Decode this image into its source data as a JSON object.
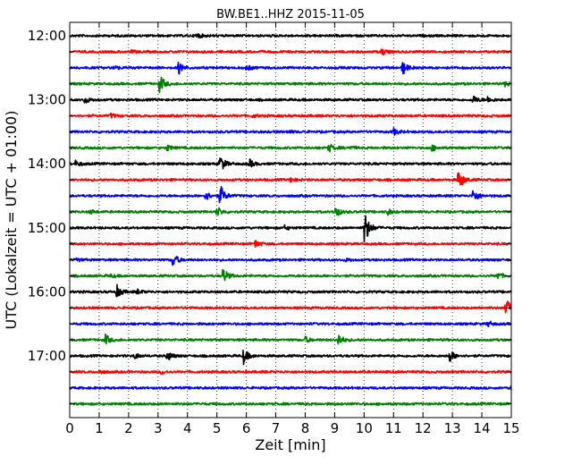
{
  "chart_data": {
    "type": "line",
    "chart_kind": "dayplot seismogram",
    "title": "BW.BE1..HHZ 2015-11-05",
    "xlabel": "Zeit  [min]",
    "ylabel": "UTC (Lokalzeit = UTC + 01:00)",
    "xlim": [
      0,
      15
    ],
    "x_ticks": [
      0,
      1,
      2,
      3,
      4,
      5,
      6,
      7,
      8,
      9,
      10,
      11,
      12,
      13,
      14,
      15
    ],
    "x_tick_labels": [
      "0",
      "1",
      "2",
      "3",
      "4",
      "5",
      "6",
      "7",
      "8",
      "9",
      "10",
      "11",
      "12",
      "13",
      "14",
      "15"
    ],
    "y_tick_labels": [
      "12:00",
      "13:00",
      "14:00",
      "15:00",
      "16:00",
      "17:00"
    ],
    "grid": {
      "vertical_dotted": true,
      "horizontal": false
    },
    "color_cycle": [
      "#000000",
      "#ff0000",
      "#0000ff",
      "#008000"
    ],
    "trace_interval_minutes": 15,
    "series": [
      {
        "start": "12:00",
        "color": "#000000",
        "events": [
          [
            4.3,
            0.4
          ]
        ]
      },
      {
        "start": "12:15",
        "color": "#ff0000",
        "events": [
          [
            10.6,
            0.5
          ],
          [
            2.1,
            0.15
          ]
        ]
      },
      {
        "start": "12:30",
        "color": "#0000ff",
        "events": [
          [
            3.7,
            0.9
          ],
          [
            1.5,
            0.3
          ],
          [
            6.0,
            0.4
          ],
          [
            11.3,
            1.0
          ]
        ]
      },
      {
        "start": "12:45",
        "color": "#008000",
        "events": [
          [
            3.05,
            1.3
          ],
          [
            14.8,
            0.4
          ]
        ]
      },
      {
        "start": "13:00",
        "color": "#000000",
        "events": [
          [
            0.5,
            0.5
          ],
          [
            13.7,
            0.6
          ],
          [
            14.2,
            0.4
          ]
        ]
      },
      {
        "start": "13:15",
        "color": "#ff0000",
        "events": [
          [
            1.4,
            0.3
          ],
          [
            6.2,
            0.2
          ]
        ]
      },
      {
        "start": "13:30",
        "color": "#0000ff",
        "events": [
          [
            11.0,
            0.5
          ],
          [
            7.4,
            0.2
          ]
        ]
      },
      {
        "start": "13:45",
        "color": "#008000",
        "events": [
          [
            3.3,
            0.4
          ],
          [
            8.8,
            0.6
          ],
          [
            12.3,
            0.4
          ],
          [
            9.5,
            0.2
          ]
        ]
      },
      {
        "start": "14:00",
        "color": "#000000",
        "events": [
          [
            5.1,
            1.3
          ],
          [
            6.1,
            0.6
          ],
          [
            0.2,
            0.4
          ]
        ]
      },
      {
        "start": "14:15",
        "color": "#ff0000",
        "events": [
          [
            13.2,
            1.6
          ],
          [
            7.5,
            0.3
          ]
        ]
      },
      {
        "start": "14:30",
        "color": "#0000ff",
        "events": [
          [
            5.1,
            1.6
          ],
          [
            4.6,
            0.7
          ],
          [
            13.7,
            1.0
          ]
        ]
      },
      {
        "start": "14:45",
        "color": "#008000",
        "events": [
          [
            5.0,
            0.7
          ],
          [
            9.0,
            1.0
          ],
          [
            10.8,
            0.4
          ],
          [
            0.7,
            0.3
          ]
        ]
      },
      {
        "start": "15:00",
        "color": "#000000",
        "events": [
          [
            10.0,
            2.8
          ],
          [
            7.3,
            0.3
          ]
        ]
      },
      {
        "start": "15:15",
        "color": "#ff0000",
        "events": [
          [
            6.3,
            0.5
          ]
        ]
      },
      {
        "start": "15:30",
        "color": "#0000ff",
        "events": [
          [
            3.5,
            1.0
          ],
          [
            0.2,
            0.3
          ],
          [
            9.4,
            0.2
          ]
        ]
      },
      {
        "start": "15:45",
        "color": "#008000",
        "events": [
          [
            5.2,
            1.1
          ],
          [
            14.5,
            0.6
          ],
          [
            1.4,
            0.2
          ]
        ]
      },
      {
        "start": "16:00",
        "color": "#000000",
        "events": [
          [
            1.6,
            0.9
          ],
          [
            2.3,
            0.3
          ]
        ]
      },
      {
        "start": "16:15",
        "color": "#ff0000",
        "events": [
          [
            14.8,
            1.6
          ]
        ]
      },
      {
        "start": "16:30",
        "color": "#0000ff",
        "events": [
          [
            14.2,
            0.4
          ]
        ]
      },
      {
        "start": "16:45",
        "color": "#008000",
        "events": [
          [
            1.2,
            0.8
          ],
          [
            9.1,
            1.0
          ],
          [
            8.0,
            0.4
          ]
        ]
      },
      {
        "start": "17:00",
        "color": "#000000",
        "events": [
          [
            3.3,
            0.8
          ],
          [
            5.9,
            1.1
          ],
          [
            12.9,
            0.9
          ],
          [
            2.2,
            0.4
          ]
        ]
      },
      {
        "start": "17:15",
        "color": "#ff0000",
        "events": [
          [
            1.0,
            0.3
          ],
          [
            3.1,
            0.3
          ]
        ]
      },
      {
        "start": "17:30",
        "color": "#0000ff",
        "events": [
          [
            15.0,
            0.5
          ]
        ]
      },
      {
        "start": "17:45",
        "color": "#008000",
        "events": []
      }
    ]
  }
}
